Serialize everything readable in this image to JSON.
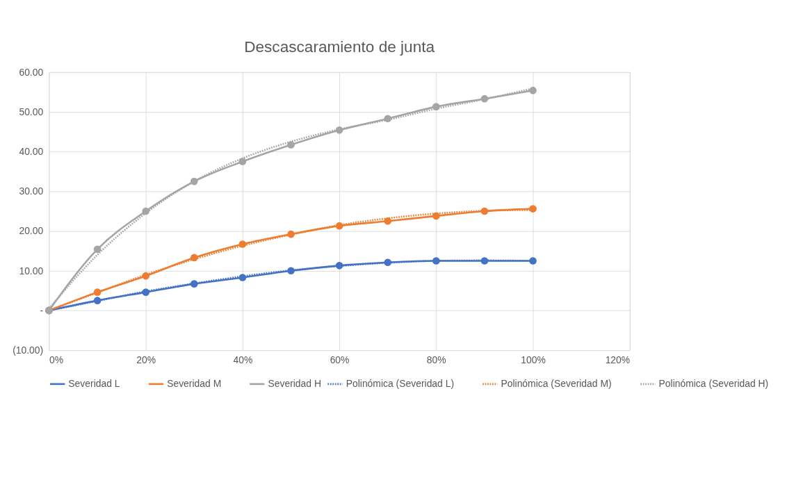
{
  "chart_data": {
    "type": "line",
    "title": "Descascaramiento de junta",
    "x": [
      0,
      10,
      20,
      30,
      40,
      50,
      60,
      70,
      80,
      90,
      100
    ],
    "xlim": [
      0,
      120
    ],
    "xticks": [
      {
        "value": 0,
        "label": "0%"
      },
      {
        "value": 20,
        "label": "20%"
      },
      {
        "value": 40,
        "label": "40%"
      },
      {
        "value": 60,
        "label": "60%"
      },
      {
        "value": 80,
        "label": "80%"
      },
      {
        "value": 100,
        "label": "100%"
      },
      {
        "value": 120,
        "label": "120%"
      }
    ],
    "ylim": [
      -10,
      60
    ],
    "yticks": [
      {
        "value": -10,
        "label": "(10.00)"
      },
      {
        "value": 0,
        "label": "-"
      },
      {
        "value": 10,
        "label": "10.00"
      },
      {
        "value": 20,
        "label": "20.00"
      },
      {
        "value": 30,
        "label": "30.00"
      },
      {
        "value": 40,
        "label": "40.00"
      },
      {
        "value": 50,
        "label": "50.00"
      },
      {
        "value": 60,
        "label": "60.00"
      }
    ],
    "grid": true,
    "legend": "bottom",
    "series": [
      {
        "name": "Severidad L",
        "color": "#4472c4",
        "marker": "circle",
        "line_style": "solid",
        "values": [
          0,
          2.5,
          4.6,
          6.7,
          8.3,
          10,
          11.3,
          12.1,
          12.5,
          12.5,
          12.5
        ]
      },
      {
        "name": "Severidad M",
        "color": "#ed7d31",
        "marker": "circle",
        "line_style": "solid",
        "values": [
          0,
          4.6,
          8.7,
          13.3,
          16.7,
          19.2,
          21.3,
          22.5,
          23.8,
          25,
          25.6
        ]
      },
      {
        "name": "Severidad H",
        "color": "#a5a5a5",
        "marker": "circle",
        "line_style": "solid",
        "values": [
          0,
          15.4,
          25,
          32.5,
          37.5,
          41.7,
          45.4,
          48.3,
          51.3,
          53.3,
          55.4
        ]
      },
      {
        "name": "Polinómica (Severidad L)",
        "color": "#4472c4",
        "marker": "none",
        "line_style": "dotted",
        "values": [
          0,
          2.4,
          4.8,
          6.8,
          8.6,
          10.1,
          11.2,
          12,
          12.5,
          12.6,
          12.5
        ]
      },
      {
        "name": "Polinómica (Severidad M)",
        "color": "#ed7d31",
        "marker": "none",
        "line_style": "dotted",
        "values": [
          0,
          4.5,
          9,
          12.9,
          16.3,
          19.1,
          21.5,
          23.2,
          24.4,
          25.1,
          25.3
        ]
      },
      {
        "name": "Polinómica (Severidad H)",
        "color": "#a5a5a5",
        "marker": "none",
        "line_style": "dotted",
        "values": [
          0.5,
          14,
          24.5,
          32.5,
          38.3,
          42.5,
          45.6,
          48,
          50.8,
          53.2,
          55.9
        ]
      }
    ]
  }
}
